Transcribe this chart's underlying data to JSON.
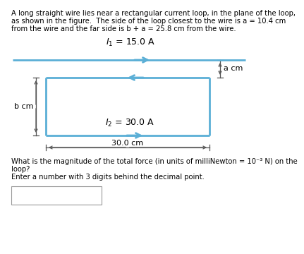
{
  "title_line1": "A long straight wire lies near a rectangular current loop, in the plane of the loop,",
  "title_line2": "as shown in the figure.  The side of the loop closest to the wire is a = 10.4 cm",
  "title_line3": "from the wire and the far side is b + a = 25.8 cm from the wire.",
  "I1_label": "$I_1$ = 15.0 A",
  "I2_label": "$I_2$ = 30.0 A",
  "a_label": "a cm",
  "b_label": "b cm",
  "width_label": "30.0 cm",
  "question_line1": "What is the magnitude of the total force (in units of milliNewton = 10⁻³ N) on the",
  "question_line2": "loop?",
  "question_line3": "Enter a number with 3 digits behind the decimal point.",
  "wire_color": "#5bafd6",
  "bg_color": "#ffffff",
  "text_color": "#000000",
  "dim_color": "#555555"
}
